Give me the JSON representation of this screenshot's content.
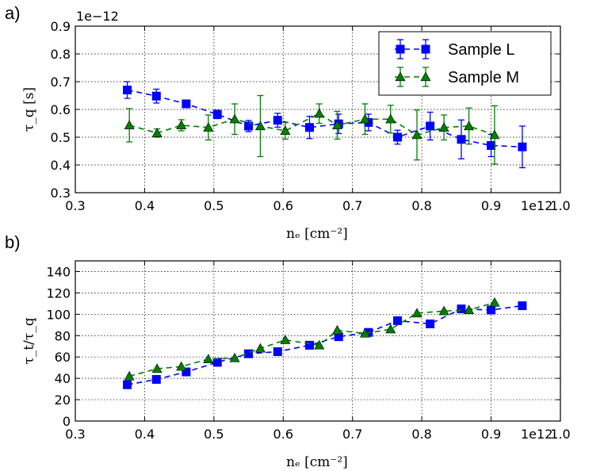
{
  "chart_data": [
    {
      "type": "scatter",
      "panel_label": "a)",
      "offset_label": "1e−12",
      "xlabel": "nₑ [cm⁻²]",
      "ylabel": "τ_q [s]",
      "xlim": [
        0.3,
        1.0
      ],
      "ylim": [
        0.3,
        0.9
      ],
      "x_ticks": [
        "0.3",
        "0.4",
        "0.5",
        "0.6",
        "0.7",
        "0.8",
        "0.9",
        "1.0"
      ],
      "y_ticks": [
        "0.3",
        "0.4",
        "0.5",
        "0.6",
        "0.7",
        "0.8",
        "0.9"
      ],
      "x_offset": "1e12",
      "grid": true,
      "legend_position": "top-right",
      "series": [
        {
          "name": "Sample L",
          "color": "#0000ff",
          "marker": "square",
          "x": [
            0.375,
            0.417,
            0.46,
            0.505,
            0.55,
            0.592,
            0.638,
            0.68,
            0.723,
            0.765,
            0.812,
            0.857,
            0.9,
            0.945
          ],
          "y": [
            0.67,
            0.648,
            0.62,
            0.582,
            0.54,
            0.561,
            0.535,
            0.548,
            0.553,
            0.5,
            0.54,
            0.492,
            0.47,
            0.465
          ],
          "err": [
            0.03,
            0.025,
            0.01,
            0.015,
            0.02,
            0.025,
            0.04,
            0.035,
            0.03,
            0.025,
            0.05,
            0.07,
            0.04,
            0.075
          ]
        },
        {
          "name": "Sample M",
          "color": "#007f00",
          "marker": "triangle",
          "x": [
            0.378,
            0.418,
            0.453,
            0.492,
            0.53,
            0.567,
            0.603,
            0.652,
            0.678,
            0.718,
            0.755,
            0.793,
            0.832,
            0.868,
            0.905
          ],
          "y": [
            0.543,
            0.515,
            0.543,
            0.535,
            0.565,
            0.54,
            0.523,
            0.585,
            0.543,
            0.565,
            0.565,
            0.508,
            0.535,
            0.54,
            0.508
          ],
          "err": [
            0.06,
            0.015,
            0.02,
            0.045,
            0.055,
            0.11,
            0.03,
            0.035,
            0.05,
            0.055,
            0.05,
            0.09,
            0.045,
            0.065,
            0.105
          ]
        }
      ]
    },
    {
      "type": "line",
      "panel_label": "b)",
      "xlabel": "nₑ [cm⁻²]",
      "ylabel": "τ_t/τ_q",
      "xlim": [
        0.3,
        1.0
      ],
      "ylim": [
        0,
        150
      ],
      "x_ticks": [
        "0.3",
        "0.4",
        "0.5",
        "0.6",
        "0.7",
        "0.8",
        "0.9",
        "1.0"
      ],
      "y_ticks": [
        "0",
        "20",
        "40",
        "60",
        "80",
        "100",
        "120",
        "140"
      ],
      "x_offset": "1e12",
      "grid": true,
      "series": [
        {
          "name": "Sample L",
          "color": "#0000ff",
          "marker": "square",
          "x": [
            0.375,
            0.417,
            0.46,
            0.505,
            0.55,
            0.592,
            0.638,
            0.68,
            0.723,
            0.765,
            0.812,
            0.857,
            0.9,
            0.945
          ],
          "y": [
            34,
            39,
            46,
            55,
            63,
            65,
            71,
            79,
            83,
            94,
            91,
            105,
            104,
            108
          ]
        },
        {
          "name": "Sample M",
          "color": "#007f00",
          "marker": "triangle",
          "x": [
            0.378,
            0.418,
            0.453,
            0.492,
            0.53,
            0.567,
            0.603,
            0.652,
            0.678,
            0.718,
            0.755,
            0.793,
            0.832,
            0.868,
            0.905
          ],
          "y": [
            42,
            49,
            51,
            58,
            59,
            68,
            76,
            71,
            85,
            82,
            86,
            101,
            103,
            104,
            111
          ]
        }
      ]
    }
  ]
}
